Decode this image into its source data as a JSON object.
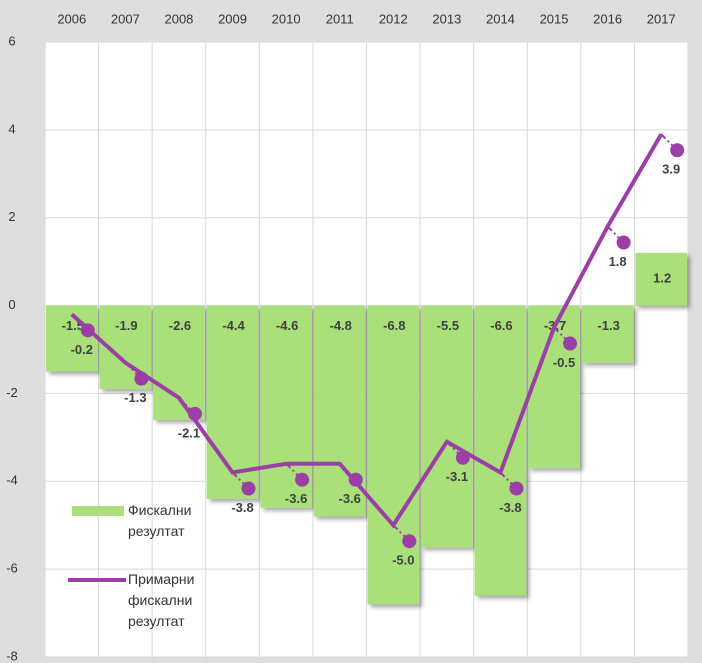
{
  "chart_data": {
    "type": "bar_line",
    "categories": [
      "2006",
      "2007",
      "2008",
      "2009",
      "2010",
      "2011",
      "2012",
      "2013",
      "2014",
      "2015",
      "2016",
      "2017"
    ],
    "series": [
      {
        "name": "Фискални резултат",
        "type": "bar",
        "color": "#a9e07a",
        "values": [
          -1.5,
          -1.9,
          -2.6,
          -4.4,
          -4.6,
          -4.8,
          -6.8,
          -5.5,
          -6.6,
          -3.7,
          -1.3,
          1.2
        ]
      },
      {
        "name": "Примарни фискални резултат",
        "type": "line",
        "color": "#9b3fa6",
        "values": [
          -0.2,
          -1.3,
          -2.1,
          -3.8,
          -3.6,
          -3.6,
          -5.0,
          -3.1,
          -3.8,
          -0.5,
          1.8,
          3.9
        ],
        "value_labels": [
          "-0.2",
          "-1.3",
          "-2.1",
          "-3.8",
          "-3.6",
          "-3.6",
          "-5.0",
          "-3.1",
          "-3.8",
          "-0.5",
          "1.8",
          "3.9"
        ]
      }
    ],
    "ylim": [
      -8,
      6
    ],
    "yticks": [
      -8,
      -6,
      -4,
      -2,
      0,
      2,
      4,
      6
    ],
    "grid": true
  }
}
